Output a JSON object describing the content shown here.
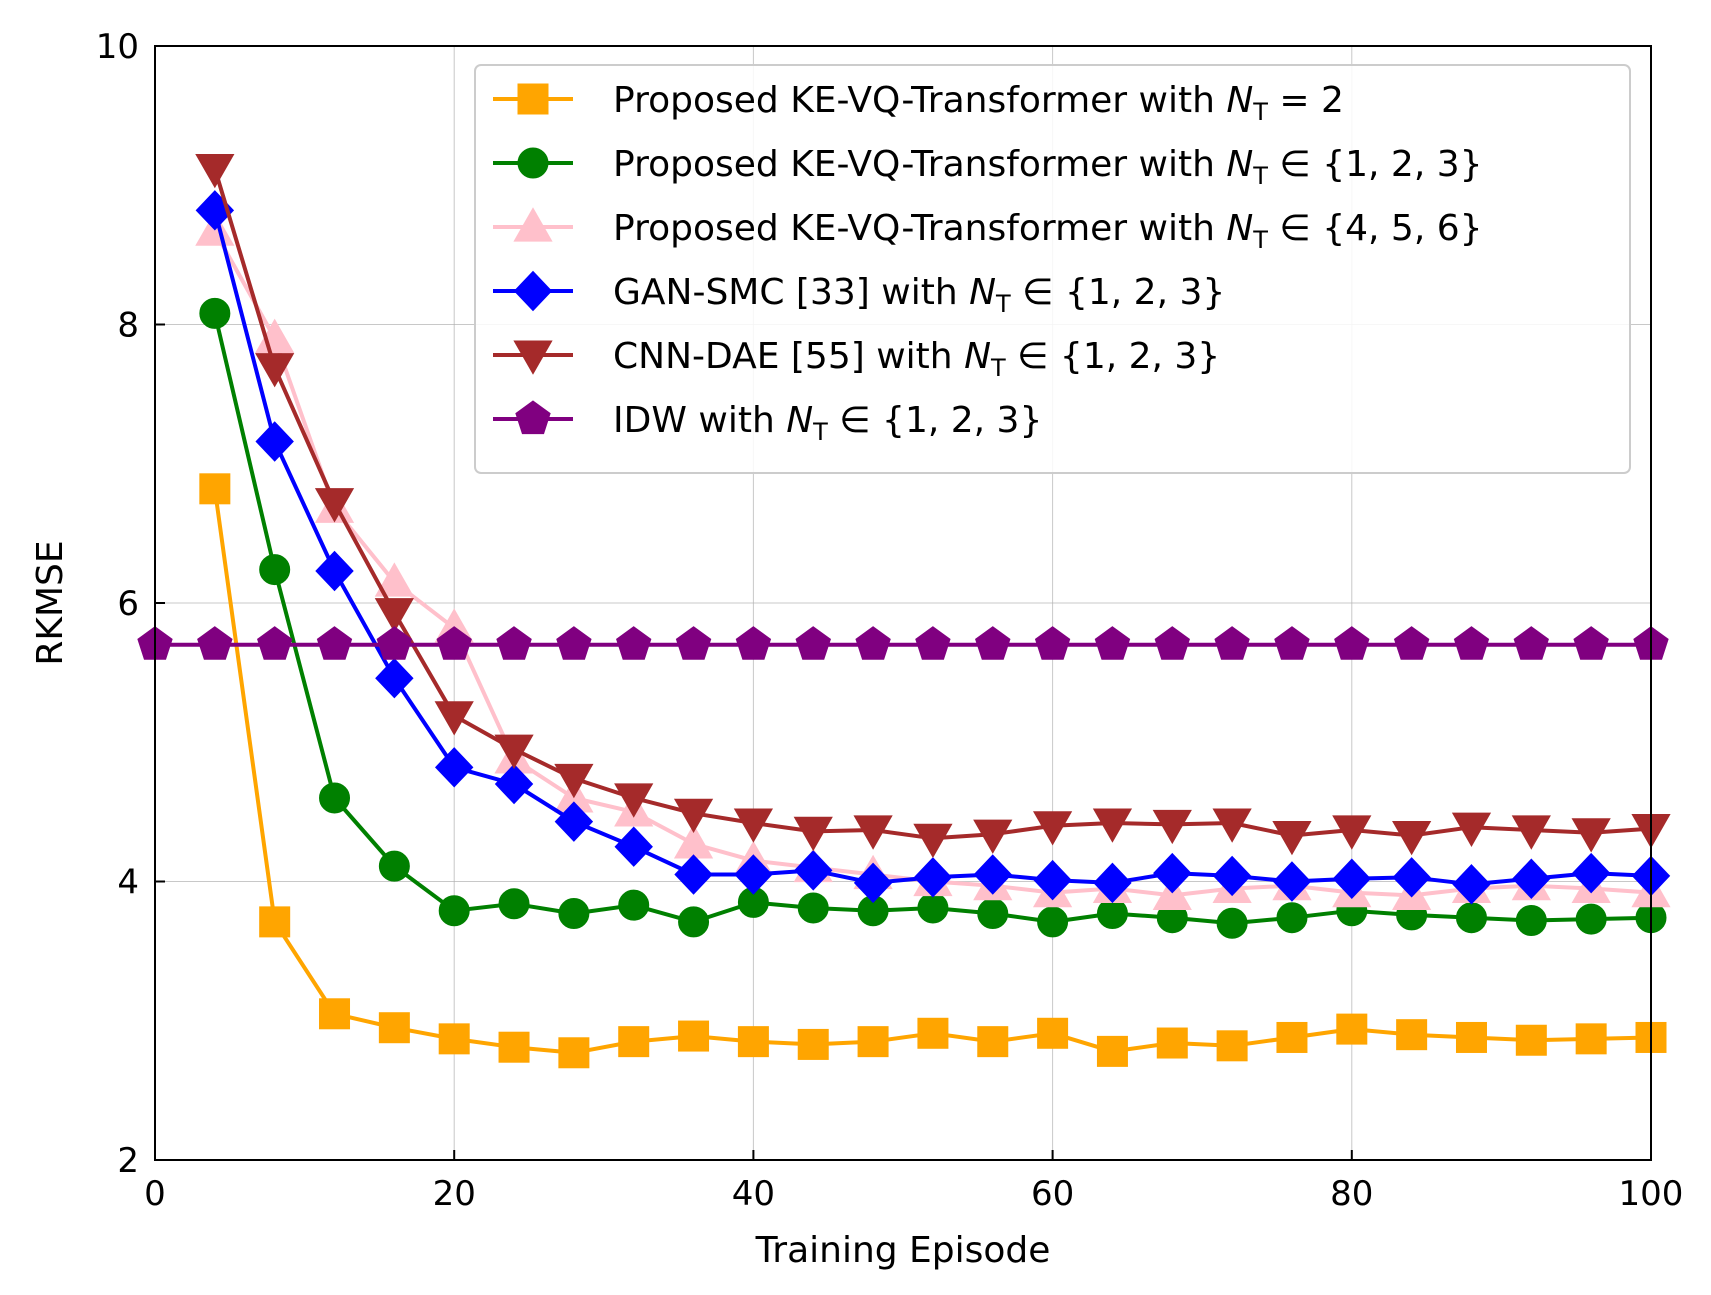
{
  "chart_data": {
    "type": "line",
    "title": "",
    "xlabel": "Training Episode",
    "ylabel": "RKMSE",
    "xlim": [
      0,
      100
    ],
    "ylim": [
      2,
      10
    ],
    "xticks": [
      0,
      20,
      40,
      60,
      80,
      100
    ],
    "yticks": [
      2,
      4,
      6,
      8,
      10
    ],
    "grid": true,
    "legend_position": "top-right",
    "series": [
      {
        "name": "Proposed KE-VQ-Transformer with N_T = 2",
        "legend": {
          "prefix": "Proposed KE-VQ-Transformer with ",
          "var": "N",
          "sub": "T",
          "suffix": " = 2"
        },
        "color": "#FFA500",
        "marker": "square",
        "x": [
          4,
          8,
          12,
          16,
          20,
          24,
          28,
          32,
          36,
          40,
          44,
          48,
          52,
          56,
          60,
          64,
          68,
          72,
          76,
          80,
          84,
          88,
          92,
          96,
          100
        ],
        "values": [
          6.82,
          3.71,
          3.05,
          2.95,
          2.87,
          2.81,
          2.77,
          2.85,
          2.89,
          2.85,
          2.83,
          2.85,
          2.91,
          2.85,
          2.91,
          2.78,
          2.84,
          2.82,
          2.88,
          2.94,
          2.9,
          2.88,
          2.86,
          2.87,
          2.88
        ]
      },
      {
        "name": "Proposed KE-VQ-Transformer with N_T ∈ {1, 2, 3}",
        "legend": {
          "prefix": "Proposed KE-VQ-Transformer with ",
          "var": "N",
          "sub": "T",
          "suffix": " ∈ {1, 2, 3}"
        },
        "color": "#008000",
        "marker": "circle",
        "x": [
          4,
          8,
          12,
          16,
          20,
          24,
          28,
          32,
          36,
          40,
          44,
          48,
          52,
          56,
          60,
          64,
          68,
          72,
          76,
          80,
          84,
          88,
          92,
          96,
          100
        ],
        "values": [
          8.08,
          6.24,
          4.6,
          4.11,
          3.79,
          3.84,
          3.77,
          3.83,
          3.71,
          3.85,
          3.81,
          3.79,
          3.81,
          3.77,
          3.71,
          3.77,
          3.74,
          3.7,
          3.74,
          3.79,
          3.76,
          3.74,
          3.72,
          3.73,
          3.74
        ]
      },
      {
        "name": "Proposed KE-VQ-Transformer with N_T ∈ {4, 5, 6}",
        "legend": {
          "prefix": "Proposed KE-VQ-Transformer with ",
          "var": "N",
          "sub": "T",
          "suffix": " ∈ {4, 5, 6}"
        },
        "color": "#FFC0CB",
        "marker": "triangle-up",
        "x": [
          4,
          8,
          12,
          16,
          20,
          24,
          28,
          32,
          36,
          40,
          44,
          48,
          52,
          56,
          60,
          64,
          68,
          72,
          76,
          80,
          84,
          88,
          92,
          96,
          100
        ],
        "values": [
          8.67,
          7.9,
          6.68,
          6.15,
          5.82,
          4.88,
          4.6,
          4.5,
          4.27,
          4.15,
          4.1,
          4.05,
          4.0,
          3.97,
          3.92,
          3.95,
          3.9,
          3.95,
          3.97,
          3.92,
          3.9,
          3.95,
          3.97,
          3.95,
          3.92
        ]
      },
      {
        "name": "GAN-SMC [33] with N_T ∈ {1, 2, 3}",
        "legend": {
          "prefix": "GAN-SMC [33] with ",
          "var": "N",
          "sub": "T",
          "suffix": " ∈ {1, 2, 3}"
        },
        "color": "#0000FF",
        "marker": "diamond",
        "x": [
          4,
          8,
          12,
          16,
          20,
          24,
          28,
          32,
          36,
          40,
          44,
          48,
          52,
          56,
          60,
          64,
          68,
          72,
          76,
          80,
          84,
          88,
          92,
          96,
          100
        ],
        "values": [
          8.82,
          7.16,
          6.23,
          5.46,
          4.82,
          4.7,
          4.43,
          4.25,
          4.05,
          4.05,
          4.08,
          3.99,
          4.03,
          4.05,
          4.01,
          3.99,
          4.06,
          4.04,
          4.0,
          4.02,
          4.03,
          3.98,
          4.02,
          4.06,
          4.04
        ]
      },
      {
        "name": "CNN-DAE [55] with N_T ∈ {1, 2, 3}",
        "legend": {
          "prefix": "CNN-DAE [55] with ",
          "var": "N",
          "sub": "T",
          "suffix": " ∈ {1, 2, 3}"
        },
        "color": "#A52A2A",
        "marker": "triangle-down",
        "x": [
          4,
          8,
          12,
          16,
          20,
          24,
          28,
          32,
          36,
          40,
          44,
          48,
          52,
          56,
          60,
          64,
          68,
          72,
          76,
          80,
          84,
          88,
          92,
          96,
          100
        ],
        "values": [
          9.12,
          7.69,
          6.72,
          5.93,
          5.19,
          4.95,
          4.74,
          4.6,
          4.49,
          4.42,
          4.36,
          4.37,
          4.31,
          4.34,
          4.4,
          4.42,
          4.41,
          4.42,
          4.33,
          4.37,
          4.33,
          4.39,
          4.37,
          4.35,
          4.38
        ]
      },
      {
        "name": "IDW with N_T ∈ {1, 2, 3}",
        "legend": {
          "prefix": "IDW with ",
          "var": "N",
          "sub": "T",
          "suffix": " ∈ {1, 2, 3}"
        },
        "color": "#800080",
        "marker": "pentagon",
        "x": [
          0,
          4,
          8,
          12,
          16,
          20,
          24,
          28,
          32,
          36,
          40,
          44,
          48,
          52,
          56,
          60,
          64,
          68,
          72,
          76,
          80,
          84,
          88,
          92,
          96,
          100
        ],
        "values": [
          5.7,
          5.7,
          5.7,
          5.7,
          5.7,
          5.7,
          5.7,
          5.7,
          5.7,
          5.7,
          5.7,
          5.7,
          5.7,
          5.7,
          5.7,
          5.7,
          5.7,
          5.7,
          5.7,
          5.7,
          5.7,
          5.7,
          5.7,
          5.7,
          5.7,
          5.7
        ]
      }
    ]
  }
}
